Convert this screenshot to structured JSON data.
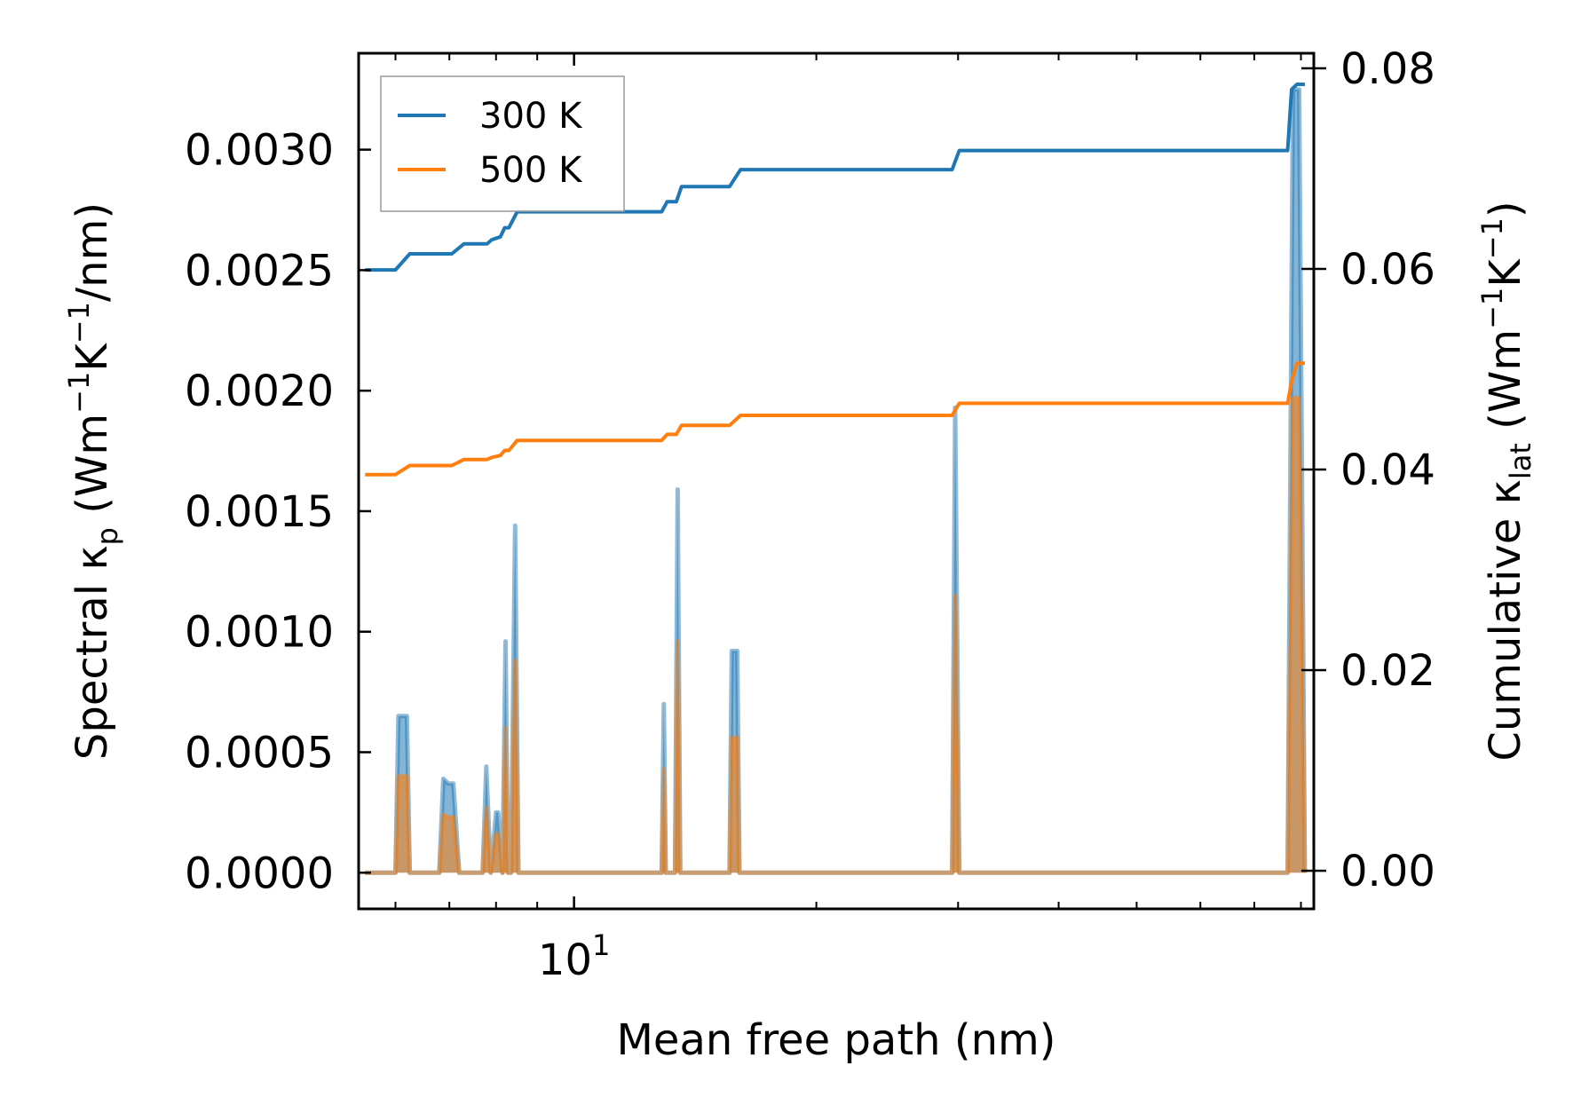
{
  "chart_data": {
    "type": "line",
    "title": "",
    "xlabel": "Mean free path (nm)",
    "xscale": "log",
    "xlim": [
      5.4,
      83.0
    ],
    "x_tick_label": {
      "mantissa": "10",
      "exponent": "1",
      "value": 10
    },
    "ylabel_left": {
      "prefix": "Spectral κ",
      "sub": "p",
      "unit_open": " (Wm",
      "sup1": "−1",
      "unit_mid": "K",
      "sup2": "−1",
      "unit_close": "/nm)"
    },
    "ylabel_right": {
      "prefix": "Cumulative κ",
      "sub": "lat",
      "unit_open": " (Wm",
      "sup1": "−1",
      "unit_mid": "K",
      "sup2": "−1",
      "unit_close": ")"
    },
    "ylim_left": [
      -0.00015,
      0.0034
    ],
    "ylim_right": [
      -0.0038,
      0.0815
    ],
    "yticks_left": [
      {
        "value": 0.0,
        "label": "0.0000"
      },
      {
        "value": 0.0005,
        "label": "0.0005"
      },
      {
        "value": 0.001,
        "label": "0.0010"
      },
      {
        "value": 0.0015,
        "label": "0.0015"
      },
      {
        "value": 0.002,
        "label": "0.0020"
      },
      {
        "value": 0.0025,
        "label": "0.0025"
      },
      {
        "value": 0.003,
        "label": "0.0030"
      }
    ],
    "yticks_right": [
      {
        "value": 0.0,
        "label": "0.00"
      },
      {
        "value": 0.02,
        "label": "0.02"
      },
      {
        "value": 0.04,
        "label": "0.04"
      },
      {
        "value": 0.06,
        "label": "0.06"
      },
      {
        "value": 0.08,
        "label": "0.08"
      }
    ],
    "legend": {
      "placement": "top-left"
    },
    "spectral_series": [
      {
        "name": "300 K spectral",
        "color": "#1f77b4",
        "x": [
          5.5,
          6.0,
          6.05,
          6.2,
          6.25,
          6.8,
          6.88,
          6.98,
          7.08,
          7.2,
          7.7,
          7.78,
          7.88,
          8.0,
          8.05,
          8.15,
          8.22,
          8.28,
          8.35,
          8.45,
          8.53,
          8.58,
          8.68,
          12.85,
          12.93,
          13.0,
          13.35,
          13.45,
          13.55,
          15.6,
          15.7,
          15.95,
          16.05,
          29.5,
          29.75,
          30.1,
          77.0,
          78.2,
          79.6,
          80.9
        ],
        "values": [
          0.0,
          0.0,
          0.00065,
          0.00065,
          0.0,
          0.0,
          0.00039,
          0.00037,
          0.00037,
          0.0,
          0.0,
          0.00044,
          0.0,
          0.00025,
          0.00025,
          0.0,
          0.00096,
          0.0,
          0.0,
          0.00144,
          0.0,
          0.0,
          0.0,
          0.0,
          0.0007,
          0.0,
          0.0,
          0.00159,
          0.0,
          0.0,
          0.00092,
          0.00092,
          0.0,
          0.0,
          0.00193,
          0.0,
          0.0,
          0.00325,
          0.00325,
          0.0
        ]
      },
      {
        "name": "500 K spectral",
        "color": "#ff7f0e",
        "x": [
          5.5,
          6.0,
          6.05,
          6.2,
          6.25,
          6.8,
          6.88,
          6.98,
          7.08,
          7.2,
          7.7,
          7.78,
          7.88,
          8.0,
          8.05,
          8.15,
          8.22,
          8.28,
          8.35,
          8.45,
          8.53,
          8.58,
          8.68,
          12.85,
          12.93,
          13.0,
          13.35,
          13.45,
          13.55,
          15.6,
          15.7,
          15.95,
          16.05,
          29.5,
          29.75,
          30.1,
          77.0,
          78.2,
          79.6,
          80.9
        ],
        "values": [
          0.0,
          0.0,
          0.0004,
          0.0004,
          0.0,
          0.0,
          0.00024,
          0.00023,
          0.00023,
          0.0,
          0.0,
          0.00027,
          0.0,
          0.00016,
          0.00016,
          0.0,
          0.0006,
          0.0,
          0.0,
          0.00088,
          0.0,
          0.0,
          0.0,
          0.0,
          0.00043,
          0.0,
          0.0,
          0.00096,
          0.0,
          0.0,
          0.00056,
          0.00056,
          0.0,
          0.0,
          0.00115,
          0.0,
          0.0,
          0.00197,
          0.00197,
          0.0
        ]
      }
    ],
    "cumulative_series": [
      {
        "name": "300 K",
        "color": "#1f77b4",
        "x": [
          5.5,
          6.0,
          6.25,
          7.05,
          7.3,
          7.8,
          7.9,
          8.1,
          8.2,
          8.3,
          8.5,
          8.6,
          12.85,
          13.05,
          13.4,
          13.6,
          15.6,
          16.1,
          29.5,
          30.1,
          77.0,
          77.9,
          79.1,
          80.9
        ],
        "values": [
          0.0599,
          0.0599,
          0.0615,
          0.0615,
          0.0625,
          0.0625,
          0.0629,
          0.0632,
          0.0641,
          0.0641,
          0.0657,
          0.0657,
          0.0657,
          0.0667,
          0.0667,
          0.0682,
          0.0682,
          0.0699,
          0.0699,
          0.0718,
          0.0718,
          0.0779,
          0.0784,
          0.0784
        ]
      },
      {
        "name": "500 K",
        "color": "#ff7f0e",
        "x": [
          5.5,
          6.0,
          6.25,
          7.05,
          7.3,
          7.8,
          7.9,
          8.1,
          8.2,
          8.3,
          8.5,
          8.6,
          12.85,
          13.05,
          13.4,
          13.6,
          15.6,
          16.1,
          29.5,
          30.1,
          77.0,
          77.9,
          79.1,
          80.9
        ],
        "values": [
          0.0395,
          0.0395,
          0.0404,
          0.0404,
          0.041,
          0.041,
          0.0412,
          0.0414,
          0.0419,
          0.0419,
          0.0429,
          0.0429,
          0.0429,
          0.0435,
          0.0435,
          0.0444,
          0.0444,
          0.0454,
          0.0454,
          0.0466,
          0.0466,
          0.0488,
          0.0506,
          0.0506
        ]
      }
    ]
  }
}
